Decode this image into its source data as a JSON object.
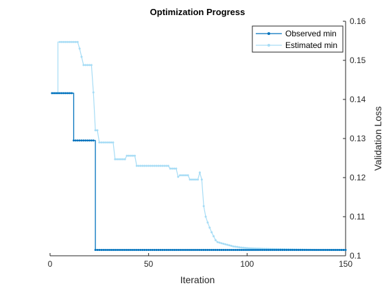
{
  "chart_data": {
    "type": "line",
    "title": "Optimization Progress",
    "xlabel": "Iteration",
    "ylabel": "Validation Loss",
    "xlim": [
      0,
      150
    ],
    "ylim": [
      0.1,
      0.16
    ],
    "x_ticks": [
      "0",
      "50",
      "100",
      "150"
    ],
    "y_ticks": [
      "0.1",
      "0.11",
      "0.12",
      "0.13",
      "0.14",
      "0.15",
      "0.16"
    ],
    "y_axis_side": "right",
    "grid": false,
    "legend_position": "top-right",
    "series": [
      {
        "name": "Observed min",
        "color": "#0072bd",
        "steps": [
          [
            1,
            0.1416
          ],
          [
            12,
            0.1295
          ],
          [
            23,
            0.1015
          ],
          [
            150,
            0.1015
          ]
        ]
      },
      {
        "name": "Estimated min",
        "color": "#a6dcf5",
        "points": [
          [
            1,
            0.1416
          ],
          [
            4,
            0.1416
          ],
          [
            4,
            0.1547
          ],
          [
            14,
            0.1547
          ],
          [
            15,
            0.153
          ],
          [
            17,
            0.1488
          ],
          [
            21,
            0.1488
          ],
          [
            22,
            0.1418
          ],
          [
            23,
            0.1321
          ],
          [
            24,
            0.1321
          ],
          [
            25,
            0.129
          ],
          [
            32,
            0.129
          ],
          [
            33,
            0.1247
          ],
          [
            38,
            0.1247
          ],
          [
            39,
            0.1256
          ],
          [
            43,
            0.1256
          ],
          [
            44,
            0.123
          ],
          [
            60,
            0.123
          ],
          [
            61,
            0.1223
          ],
          [
            64,
            0.1223
          ],
          [
            65,
            0.1202
          ],
          [
            66,
            0.1206
          ],
          [
            70,
            0.1206
          ],
          [
            71,
            0.1195
          ],
          [
            75,
            0.1195
          ],
          [
            76,
            0.1213
          ],
          [
            77,
            0.1195
          ],
          [
            78,
            0.1127
          ],
          [
            79,
            0.11
          ],
          [
            80,
            0.1085
          ],
          [
            81,
            0.1072
          ],
          [
            82,
            0.106
          ],
          [
            83,
            0.105
          ],
          [
            84,
            0.104
          ],
          [
            85,
            0.1035
          ],
          [
            87,
            0.1032
          ],
          [
            90,
            0.1028
          ],
          [
            93,
            0.1024
          ],
          [
            97,
            0.1021
          ],
          [
            102,
            0.1019
          ],
          [
            108,
            0.1018
          ],
          [
            115,
            0.1017
          ],
          [
            125,
            0.1016
          ],
          [
            135,
            0.1015
          ],
          [
            150,
            0.1015
          ]
        ]
      }
    ]
  }
}
